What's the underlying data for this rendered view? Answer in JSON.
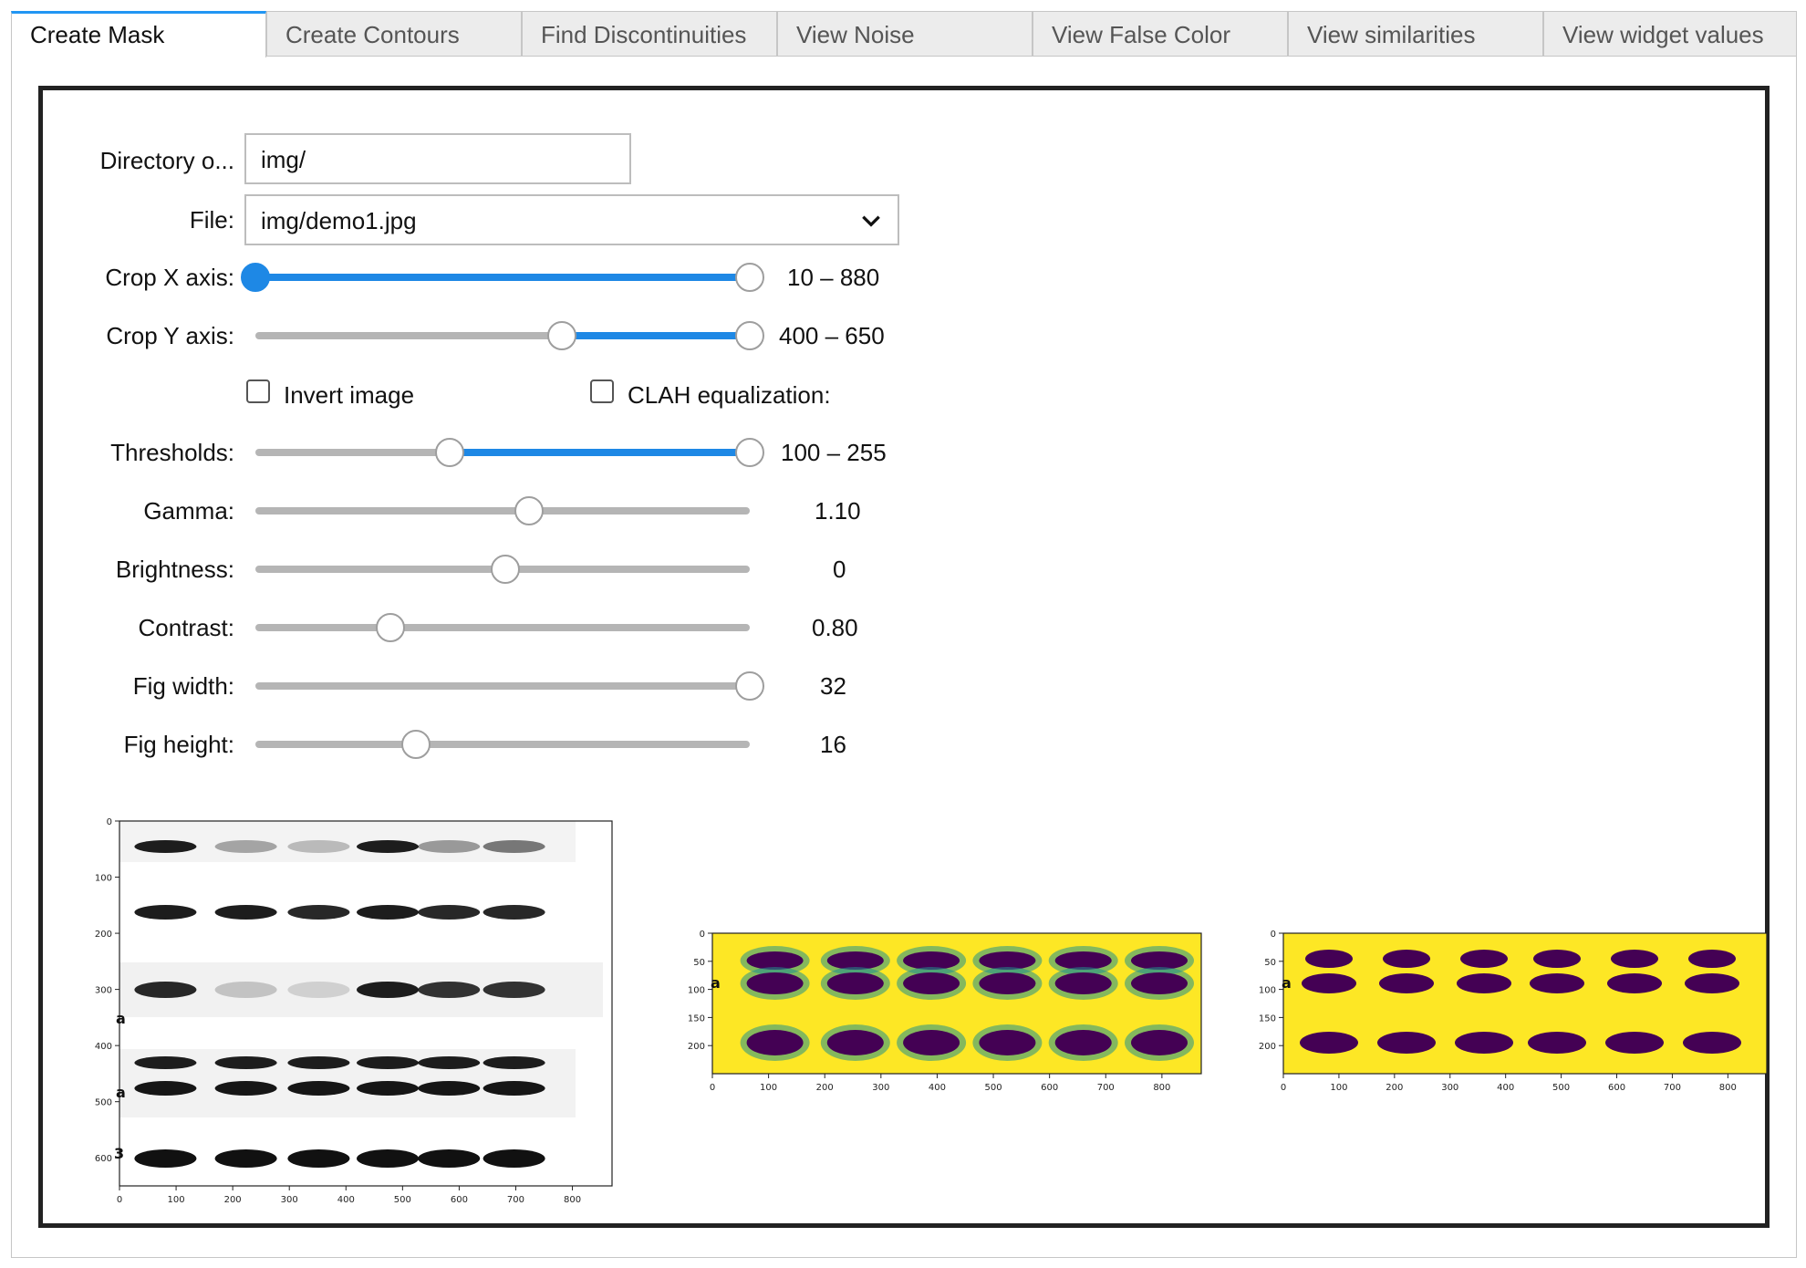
{
  "tabs": [
    {
      "label": "Create Mask"
    },
    {
      "label": "Create Contours"
    },
    {
      "label": "Find Discontinuities"
    },
    {
      "label": "View Noise"
    },
    {
      "label": "View False Color"
    },
    {
      "label": "View similarities"
    },
    {
      "label": "View widget values"
    }
  ],
  "active_tab": 0,
  "form": {
    "directory_label": "Directory o...",
    "directory_value": "img/",
    "file_label": "File:",
    "file_value": "img/demo1.jpg",
    "crop_x_label": "Crop X axis:",
    "crop_x_readout": "10 – 880",
    "crop_y_label": "Crop Y axis:",
    "crop_y_readout": "400 – 650",
    "invert_label": "Invert image",
    "invert_checked": false,
    "clahe_label": "CLAH equalization:",
    "clahe_checked": false,
    "thresholds_label": "Thresholds:",
    "thresholds_readout": "100 – 255",
    "gamma_label": "Gamma:",
    "gamma_readout": "1.10",
    "brightness_label": "Brightness:",
    "brightness_readout": "0",
    "contrast_label": "Contrast:",
    "contrast_readout": "0.80",
    "fig_width_label": "Fig width:",
    "fig_width_readout": "32",
    "fig_height_label": "Fig height:",
    "fig_height_readout": "16"
  },
  "sliders": {
    "crop_x": {
      "low": 10,
      "high": 880
    },
    "crop_y": {
      "low": 400,
      "high": 650
    },
    "thresholds": {
      "low": 100,
      "high": 255
    },
    "gamma": 1.1,
    "brightness": 0,
    "contrast": 0.8,
    "fig_width": 32,
    "fig_height": 16
  },
  "colors": {
    "accent": "#1e88e5",
    "track": "#b5b5b5",
    "viridis_yellow": "#fde725",
    "viridis_dark": "#440154",
    "viridis_teal": "#21918c"
  },
  "plots": {
    "original": {
      "x_ticks": [
        "0",
        "100",
        "200",
        "300",
        "400",
        "500",
        "600",
        "700",
        "800"
      ],
      "y_ticks": [
        "0",
        "100",
        "200",
        "300",
        "400",
        "500",
        "600"
      ],
      "edge_labels": [
        "a",
        "a",
        "3"
      ]
    },
    "false_color": {
      "x_ticks": [
        "0",
        "100",
        "200",
        "300",
        "400",
        "500",
        "600",
        "700",
        "800"
      ],
      "y_ticks": [
        "0",
        "50",
        "100",
        "150",
        "200"
      ],
      "edge_labels": [
        "a"
      ]
    },
    "mask": {
      "x_ticks": [
        "0",
        "100",
        "200",
        "300",
        "400",
        "500",
        "600",
        "700",
        "800"
      ],
      "y_ticks": [
        "0",
        "50",
        "100",
        "150",
        "200"
      ],
      "edge_labels": [
        "a"
      ]
    }
  }
}
